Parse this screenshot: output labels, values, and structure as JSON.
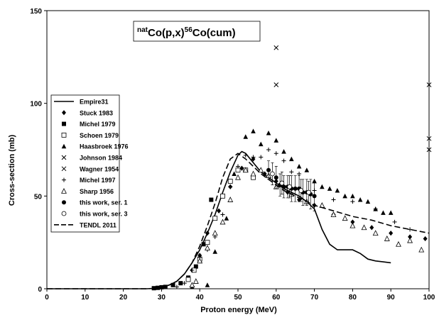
{
  "chart_data": {
    "type": "scatter",
    "title_parts": {
      "pre_sup": "nat",
      "element1": "Co(p,x)",
      "mid_sup": "56",
      "element2": "Co(cum)"
    },
    "xlabel": "Proton energy (MeV)",
    "ylabel": "Cross-section (mb)",
    "xlim": [
      0,
      100
    ],
    "ylim": [
      0,
      150
    ],
    "xticks": [
      0,
      10,
      20,
      30,
      40,
      50,
      60,
      70,
      80,
      90,
      100
    ],
    "yticks": [
      0,
      50,
      100,
      150
    ],
    "legend_position": "left-middle",
    "series": [
      {
        "name": "Empire31",
        "kind": "line",
        "style": "solid",
        "x": [
          0,
          20,
          26,
          28,
          30,
          32,
          34,
          36,
          38,
          40,
          42,
          44,
          46,
          48,
          50,
          51,
          52,
          54,
          56,
          58,
          60,
          62,
          64,
          66,
          68,
          70,
          72,
          74,
          76,
          78,
          80,
          82,
          84,
          86,
          88,
          90
        ],
        "y": [
          0,
          0,
          0,
          0.2,
          0.8,
          2,
          4,
          8,
          14,
          21,
          30,
          40,
          52,
          63,
          72,
          74,
          73,
          68,
          63,
          60,
          57,
          54,
          52,
          50,
          47,
          43,
          32,
          24,
          21,
          21,
          21,
          19,
          16,
          15,
          14.5,
          14
        ]
      },
      {
        "name": "Stuck 1983",
        "marker": "diamond",
        "x": [
          38,
          40,
          42,
          45,
          48,
          51,
          54,
          57,
          60,
          63,
          66,
          70,
          75,
          80,
          85,
          90,
          95,
          99
        ],
        "y": [
          10,
          18,
          30,
          42,
          55,
          65,
          70,
          62,
          58,
          52,
          48,
          45,
          40,
          36,
          33,
          30,
          28,
          27
        ]
      },
      {
        "name": "Michel 1979",
        "marker": "square",
        "x": [
          28,
          29,
          30,
          31,
          33,
          35,
          37,
          39,
          41,
          43
        ],
        "y": [
          0.3,
          0.5,
          0.8,
          1,
          2,
          3,
          6,
          12,
          24,
          48
        ]
      },
      {
        "name": "Schoen 1979",
        "marker": "square-open",
        "x": [
          37,
          38.5,
          40,
          42,
          44,
          46,
          48,
          50,
          52,
          54
        ],
        "y": [
          5,
          10,
          16,
          25,
          38,
          50,
          58,
          64,
          64,
          60
        ]
      },
      {
        "name": "Haasbroek 1976",
        "marker": "triangle",
        "x": [
          38,
          42,
          44,
          47,
          49,
          52,
          54,
          56,
          58,
          60,
          62,
          64,
          66,
          68,
          70,
          72,
          74,
          76,
          78,
          80,
          82,
          84,
          86,
          88,
          90
        ],
        "y": [
          1,
          2,
          20,
          38,
          62,
          82,
          85,
          78,
          84,
          80,
          74,
          70,
          66,
          64,
          58,
          55,
          54,
          53,
          50,
          50,
          48,
          47,
          43,
          41,
          41
        ]
      },
      {
        "name": "Johnson 1984",
        "marker": "x",
        "x": [
          60,
          60
        ],
        "y": [
          130,
          110
        ]
      },
      {
        "name": "Wagner 1954",
        "marker": "x",
        "x": [
          100,
          100,
          100
        ],
        "y": [
          110,
          81,
          75
        ]
      },
      {
        "name": "Michel 1997",
        "marker": "plus",
        "x": [
          34,
          36,
          38,
          40,
          42,
          44,
          46,
          48,
          50,
          52,
          54,
          56,
          58,
          60,
          62,
          64,
          66,
          70,
          75,
          80,
          86,
          91,
          95
        ],
        "y": [
          1,
          3,
          10,
          17,
          21,
          28,
          40,
          55,
          66,
          72,
          71,
          71,
          75,
          73,
          69,
          63,
          62,
          53,
          48,
          47,
          43,
          36,
          32
        ]
      },
      {
        "name": "Sharp 1956",
        "marker": "triangle-open",
        "x": [
          38,
          39,
          40,
          42,
          44,
          46,
          48,
          50,
          52,
          54,
          56,
          58,
          60,
          64,
          68,
          72,
          75,
          78,
          80,
          83,
          86,
          89,
          92,
          95,
          98
        ],
        "y": [
          2,
          4,
          15,
          22,
          30,
          36,
          48,
          60,
          64,
          62,
          64,
          61,
          55,
          51,
          47,
          45,
          40,
          38,
          34,
          33,
          30,
          27,
          24,
          26,
          21
        ]
      },
      {
        "name": "this work, ser. 1",
        "marker": "circle",
        "errorbars": true,
        "x": [
          58,
          60,
          61,
          62,
          63,
          64,
          65,
          66,
          67,
          68,
          69,
          70
        ],
        "y": [
          64,
          60,
          56,
          55,
          55,
          54,
          54,
          54,
          52,
          52,
          51,
          50
        ],
        "err": [
          5,
          6,
          6,
          6,
          6,
          7,
          7,
          7,
          7,
          7,
          8,
          8
        ]
      },
      {
        "name": "this work, ser. 3",
        "marker": "circle-open",
        "errorbars": true,
        "x": [
          59,
          61.5,
          63.5,
          66.5,
          68.5
        ],
        "y": [
          62,
          57,
          55,
          53,
          52
        ],
        "err": [
          6,
          6,
          6,
          6,
          6
        ]
      },
      {
        "name": "TENDL 2011",
        "kind": "line",
        "style": "dashed",
        "x": [
          0,
          22,
          26,
          28,
          30,
          32,
          34,
          36,
          38,
          40,
          42,
          44,
          46,
          48,
          50,
          52,
          54,
          56,
          58,
          60,
          62,
          65,
          68,
          70,
          75,
          80,
          85,
          90,
          95,
          100
        ],
        "y": [
          0,
          0,
          0,
          0.2,
          0.8,
          2,
          4,
          8,
          14,
          23,
          34,
          46,
          60,
          70,
          73,
          70,
          66,
          62,
          59,
          56,
          53,
          50,
          47,
          45,
          42,
          39,
          37,
          34,
          32,
          30
        ]
      }
    ]
  }
}
